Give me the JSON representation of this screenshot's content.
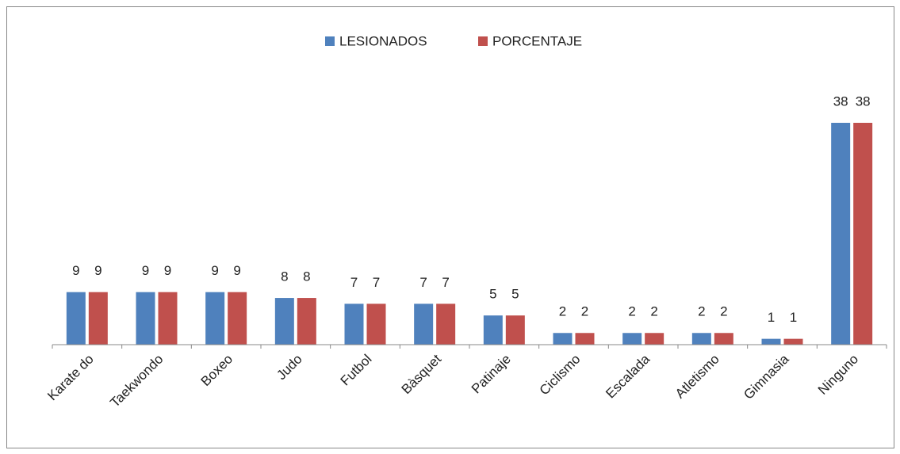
{
  "chart_data": {
    "type": "bar",
    "categories": [
      "Karate do",
      "Taekwondo",
      "Boxeo",
      "Judo",
      "Futbol",
      "Bàsquet",
      "Patinaje",
      "Ciclismo",
      "Escalada",
      "Atletismo",
      "Gimnasia",
      "Ninguno"
    ],
    "series": [
      {
        "name": "LESIONADOS",
        "color": "#4f81bd",
        "values": [
          9,
          9,
          9,
          8,
          7,
          7,
          5,
          2,
          2,
          2,
          1,
          38
        ]
      },
      {
        "name": "PORCENTAJE",
        "color": "#c0504d",
        "values": [
          9,
          9,
          9,
          8,
          7,
          7,
          5,
          2,
          2,
          2,
          1,
          38
        ]
      }
    ],
    "legend": "top"
  }
}
